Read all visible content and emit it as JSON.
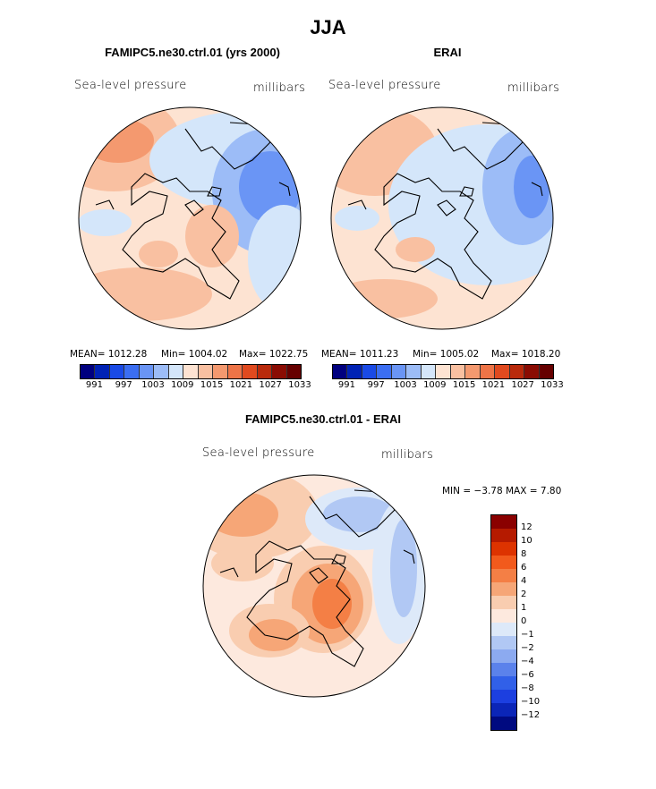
{
  "title": "JJA",
  "panels": {
    "model": {
      "title": "FAMIPC5.ne30.ctrl.01 (yrs 2000)",
      "variable": "Sea-level pressure",
      "units": "millibars",
      "mean_text": "MEAN= 1012.28",
      "min_text": "Min= 1004.02",
      "max_text": "Max= 1022.75"
    },
    "obs": {
      "title": "ERAI",
      "variable": "Sea-level pressure",
      "units": "millibars",
      "mean_text": "MEAN= 1011.23",
      "min_text": "Min= 1005.02",
      "max_text": "Max= 1018.20"
    },
    "diff": {
      "title": "FAMIPC5.ne30.ctrl.01 - ERAI",
      "variable": "Sea-level pressure",
      "units": "millibars",
      "minmax_text": "MIN =  −3.78 MAX =    7.80"
    }
  },
  "chart_data": [
    {
      "type": "heatmap",
      "title": "FAMIPC5.ne30.ctrl.01 (yrs 2000)",
      "projection": "north polar stereographic",
      "variable": "Sea-level pressure",
      "units": "millibars",
      "mean": 1012.28,
      "min": 1004.02,
      "max": 1022.75,
      "levels": [
        991,
        997,
        1003,
        1009,
        1015,
        1021,
        1027,
        1033
      ]
    },
    {
      "type": "heatmap",
      "title": "ERAI",
      "projection": "north polar stereographic",
      "variable": "Sea-level pressure",
      "units": "millibars",
      "mean": 1011.23,
      "min": 1005.02,
      "max": 1018.2,
      "levels": [
        991,
        997,
        1003,
        1009,
        1015,
        1021,
        1027,
        1033
      ]
    },
    {
      "type": "heatmap",
      "title": "FAMIPC5.ne30.ctrl.01 - ERAI",
      "projection": "north polar stereographic",
      "variable": "Sea-level pressure",
      "units": "millibars",
      "min": -3.78,
      "max": 7.8,
      "levels": [
        12,
        10,
        8,
        6,
        4,
        2,
        1,
        0,
        -1,
        -2,
        -4,
        -6,
        -8,
        -10,
        -12
      ]
    }
  ],
  "colorbar_abs": {
    "colors": [
      "#00007f",
      "#0022b5",
      "#1a4ae6",
      "#3b6ef2",
      "#6a95f5",
      "#9cbcf7",
      "#d4e6fa",
      "#fde3d2",
      "#f9c0a1",
      "#f4996f",
      "#ee7447",
      "#e04a1f",
      "#b92a0c",
      "#8a0c03",
      "#660000"
    ],
    "tick_labels": [
      "991",
      "997",
      "1003",
      "1009",
      "1015",
      "1021",
      "1027",
      "1033"
    ]
  },
  "colorbar_diff": {
    "colors": [
      "#8a0000",
      "#b51a00",
      "#dd3300",
      "#f25a1c",
      "#f47f45",
      "#f6a677",
      "#f9cdb0",
      "#fde9de",
      "#dde9f9",
      "#b1c8f4",
      "#8caaf0",
      "#5b82eb",
      "#3160e8",
      "#1c3fe0",
      "#0b25b7",
      "#000a80"
    ],
    "tick_labels": [
      "12",
      "10",
      "8",
      "6",
      "4",
      "2",
      "1",
      "0",
      "−1",
      "−2",
      "−4",
      "−6",
      "−8",
      "−10",
      "−12"
    ]
  }
}
